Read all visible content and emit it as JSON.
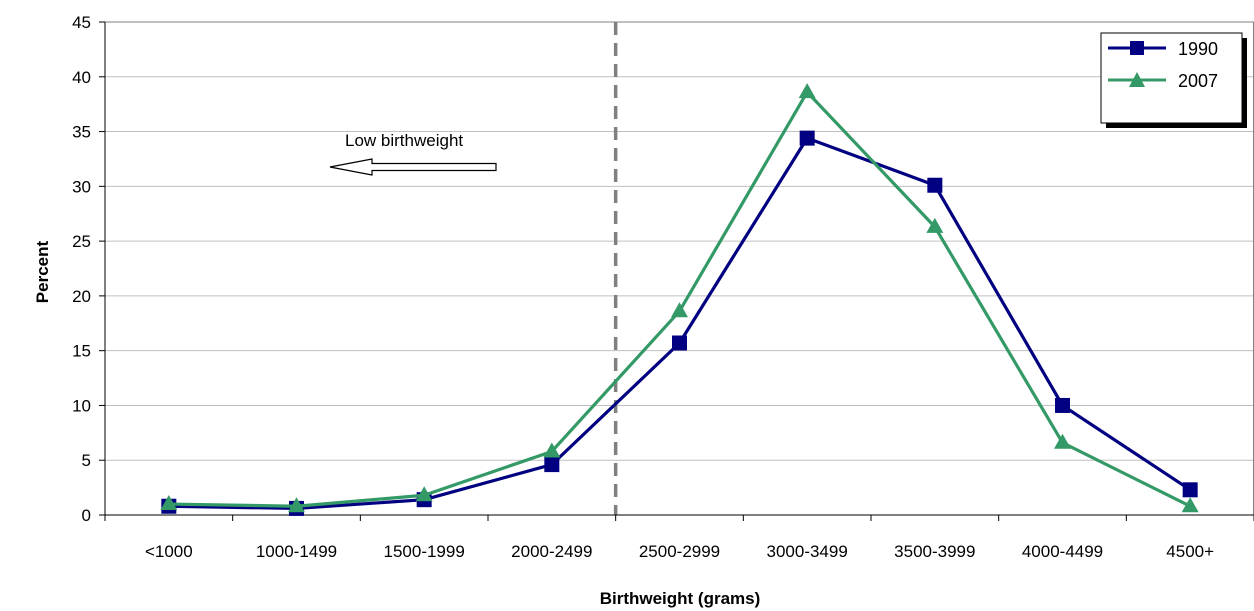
{
  "chart_data": {
    "type": "line",
    "title": "",
    "xlabel": "Birthweight (grams)",
    "ylabel": "Percent",
    "categories": [
      "<1000",
      "1000-1499",
      "1500-1999",
      "2000-2499",
      "2500-2999",
      "3000-3499",
      "3500-3999",
      "4000-4499",
      "4500+"
    ],
    "ylim": [
      0,
      45
    ],
    "yticks": [
      0,
      5,
      10,
      15,
      20,
      25,
      30,
      35,
      40,
      45
    ],
    "grid": true,
    "legend_position": "top-right",
    "series": [
      {
        "name": "1990",
        "color": "#000080",
        "marker": "square",
        "values": [
          0.8,
          0.6,
          1.4,
          4.6,
          15.7,
          34.4,
          30.1,
          10.0,
          2.3
        ]
      },
      {
        "name": "2007",
        "color": "#339966",
        "marker": "triangle",
        "values": [
          1.0,
          0.8,
          1.8,
          5.8,
          18.6,
          38.6,
          26.3,
          6.6,
          0.8
        ]
      }
    ],
    "reference_line": {
      "position": "between 2000-2499 and 2500-2999",
      "style": "dashed",
      "color": "#808080"
    },
    "annotations": [
      {
        "text": "Low birthweight",
        "arrow": "left"
      }
    ]
  }
}
